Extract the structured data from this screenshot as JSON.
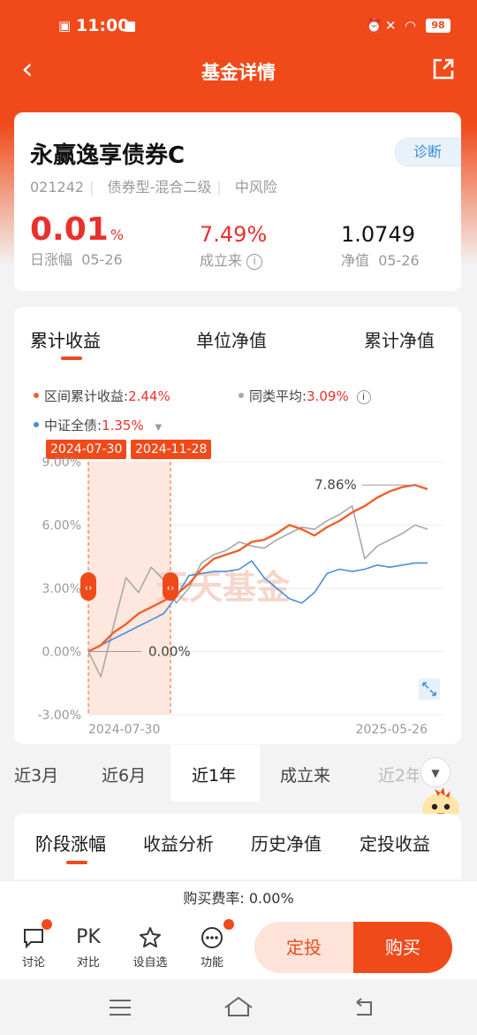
{
  "status": {
    "time": "11:00",
    "battery": "98"
  },
  "nav": {
    "title": "基金详情"
  },
  "fund": {
    "name": "永赢逸享债券C",
    "diagnose": "诊断",
    "code": "021242",
    "type": "债券型-混合二级",
    "risk": "中风险",
    "daily_value": "0.01",
    "daily_unit": "%",
    "daily_label": "日涨幅",
    "daily_date": "05-26",
    "since_value": "7.49%",
    "since_label": "成立来",
    "nav_value": "1.0749",
    "nav_label": "净值",
    "nav_date": "05-26"
  },
  "chart_tabs": [
    "累计收益",
    "单位净值",
    "累计净值"
  ],
  "legend": {
    "fund_label": "区间累计收益:",
    "fund_value": "2.44%",
    "avg_label": "同类平均:",
    "avg_value": "3.09%",
    "index_label": "中证全债:",
    "index_value": "1.35%"
  },
  "range": {
    "start": "2024-07-30",
    "end": "2024-11-28"
  },
  "chart_data": {
    "type": "line",
    "ylim": [
      -3,
      9
    ],
    "yticks": [
      "9.00%",
      "6.00%",
      "3.00%",
      "0.00%",
      "-3.00%"
    ],
    "xticks": [
      "2024-07-30",
      "2025-05-26"
    ],
    "annotations": {
      "max": "7.86%",
      "zero": "0.00%"
    },
    "watermark": "天天基金",
    "series": [
      {
        "name": "区间累计收益",
        "color": "#f0602a",
        "values": [
          0,
          0.3,
          0.9,
          1.3,
          1.8,
          2.1,
          2.4,
          2.7,
          3.2,
          3.9,
          4.4,
          4.6,
          4.8,
          5.2,
          5.3,
          5.6,
          6.0,
          5.8,
          5.5,
          5.9,
          6.2,
          6.6,
          6.9,
          7.3,
          7.6,
          7.8,
          7.9,
          7.7
        ]
      },
      {
        "name": "同类平均",
        "color": "#a8a8a8",
        "values": [
          0,
          -1.2,
          1.2,
          3.5,
          2.8,
          4.0,
          3.4,
          2.3,
          3.0,
          4.2,
          4.6,
          4.8,
          5.2,
          5.0,
          4.9,
          5.3,
          5.6,
          5.9,
          5.8,
          6.2,
          6.5,
          6.9,
          4.4,
          5.0,
          5.3,
          5.6,
          6.0,
          5.8
        ]
      },
      {
        "name": "中证全债",
        "color": "#4a8fdb",
        "values": [
          0,
          0.3,
          0.6,
          0.9,
          1.2,
          1.5,
          1.8,
          2.6,
          3.6,
          3.7,
          3.8,
          3.8,
          3.9,
          4.3,
          3.5,
          3.0,
          2.5,
          2.3,
          2.8,
          3.7,
          3.9,
          3.8,
          3.9,
          4.1,
          4.0,
          4.1,
          4.2,
          4.2
        ]
      }
    ]
  },
  "periods": [
    "近3月",
    "近6月",
    "近1年",
    "成立来",
    "近2年"
  ],
  "period_active": "近1年",
  "section_tabs": [
    "阶段涨幅",
    "收益分析",
    "历史净值",
    "定投收益"
  ],
  "fee": {
    "label": "购买费率:",
    "value": "0.00%"
  },
  "bottom": {
    "items": [
      "讨论",
      "对比",
      "设自选",
      "功能"
    ],
    "pk": "PK",
    "dingtou": "定投",
    "buy": "购买"
  },
  "colors": {
    "accent": "#f04a1a",
    "red": "#e8312c",
    "blue": "#3b8ed8"
  }
}
